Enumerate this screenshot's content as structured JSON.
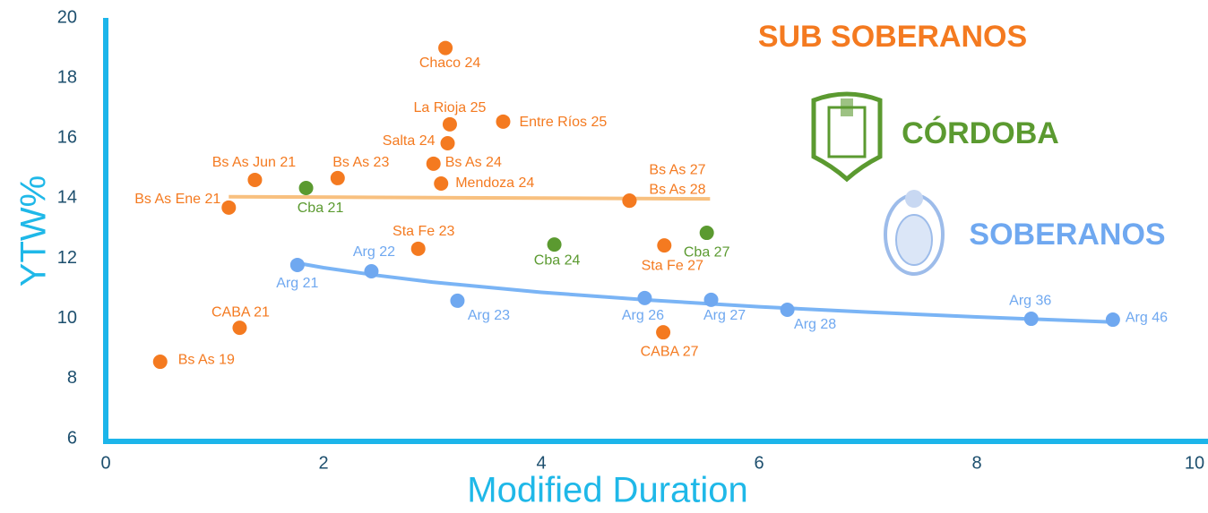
{
  "chart_data": {
    "type": "scatter",
    "xlabel": "Modified Duration",
    "ylabel": "YTW%",
    "xlim": [
      0,
      10
    ],
    "xticks": [
      0,
      2,
      4,
      6,
      8,
      10
    ],
    "ylim": [
      6,
      20
    ],
    "yticks": [
      6,
      8,
      10,
      12,
      14,
      16,
      18,
      20
    ],
    "grid": false,
    "series": [
      {
        "name": "SUB SOBERANOS",
        "color": "#f47a20",
        "labels": [
          "Chaco 24",
          "La Rioja 25",
          "Entre Ríos 25",
          "Salta 24",
          "Bs As 24",
          "Mendoza 24",
          "Bs As Jun 21",
          "Bs As 23",
          "Bs As Ene 21",
          "Bs As 27",
          "Bs As 28",
          "Sta Fe 23",
          "Sta Fe 27",
          "CABA 21",
          "CABA 27",
          "Bs As 19"
        ],
        "x": [
          3.12,
          3.16,
          3.65,
          3.14,
          3.01,
          3.08,
          1.37,
          2.13,
          1.13,
          4.81,
          4.81,
          2.87,
          5.13,
          1.23,
          5.12,
          0.5
        ],
        "values": [
          19.0,
          16.46,
          16.55,
          15.83,
          15.15,
          14.49,
          14.61,
          14.67,
          13.69,
          13.92,
          13.92,
          12.32,
          12.43,
          9.69,
          9.54,
          8.56
        ]
      },
      {
        "name": "CÓRDOBA",
        "color": "#5b9a30",
        "labels": [
          "Cba 21",
          "Cba 24",
          "Cba 27"
        ],
        "x": [
          1.84,
          4.12,
          5.52
        ],
        "values": [
          14.34,
          12.46,
          12.85
        ]
      },
      {
        "name": "SOBERANOS",
        "color": "#6fa8f0",
        "labels": [
          "Arg 21",
          "Arg 22",
          "Arg 23",
          "Arg 26",
          "Arg 27",
          "Arg 28",
          "Arg 36",
          "Arg 46"
        ],
        "x": [
          1.76,
          2.44,
          3.23,
          4.95,
          5.56,
          6.26,
          8.5,
          9.25
        ],
        "values": [
          11.78,
          11.57,
          10.59,
          10.68,
          10.62,
          10.29,
          9.99,
          9.96
        ]
      }
    ],
    "trendlines": [
      {
        "color": "#f8c07f",
        "x": [
          1.13,
          5.55
        ],
        "values": [
          14.05,
          13.98
        ]
      },
      {
        "color": "#7ab4f5",
        "x": [
          1.75,
          2,
          2.5,
          3,
          4,
          5,
          6,
          7,
          8,
          9.25
        ],
        "values": [
          11.85,
          11.69,
          11.43,
          11.21,
          10.87,
          10.61,
          10.39,
          10.21,
          10.05,
          9.88
        ]
      }
    ]
  }
}
